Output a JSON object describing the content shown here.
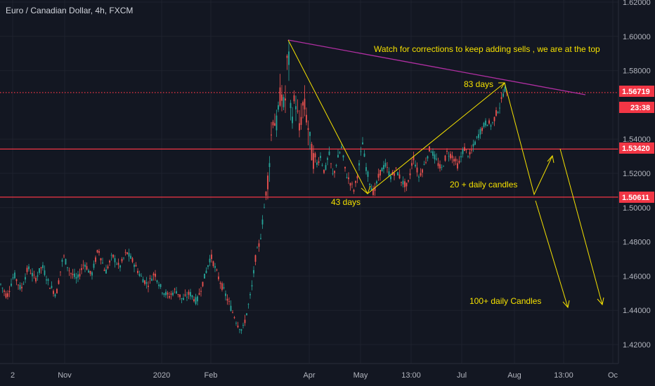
{
  "chart_data": {
    "type": "candlestick",
    "title": "Euro / Canadian Dollar, 4h, FXCM",
    "y_axis": {
      "ticks": [
        "1.62000",
        "1.60000",
        "1.58000",
        "1.54000",
        "1.52000",
        "1.50000",
        "1.48000",
        "1.46000",
        "1.44000",
        "1.42000"
      ],
      "ylim": [
        1.418,
        1.622
      ]
    },
    "x_axis": {
      "ticks": [
        "2",
        "Nov",
        "2020",
        "Feb",
        "Apr",
        "May",
        "13:00",
        "Jul",
        "Aug",
        "13:00",
        "Oc"
      ]
    },
    "price_labels": [
      {
        "value": "1.56719",
        "color": "#f23645"
      },
      {
        "value": "1.53420",
        "color": "#f23645"
      },
      {
        "value": "1.50611",
        "color": "#f23645"
      }
    ],
    "countdown_label": "23:38",
    "horizontal_lines": [
      {
        "price": 1.56719,
        "style": "dotted",
        "color": "#f23645"
      },
      {
        "price": 1.5342,
        "style": "solid",
        "color": "#f23645"
      },
      {
        "price": 1.50611,
        "style": "solid",
        "color": "#f23645"
      }
    ],
    "annotations": [
      {
        "text": "Watch for corrections to keep adding sells , we are at the top"
      },
      {
        "text": "83 days"
      },
      {
        "text": "43 days"
      },
      {
        "text": "20 +  daily candles"
      },
      {
        "text": "100+  daily Candles"
      }
    ],
    "colors": {
      "background": "#131722",
      "up_candle": "#26a69a",
      "down_candle": "#ef5350",
      "trendline": "#b02fa2",
      "drawing": "#f5e100",
      "level": "#f23645"
    },
    "grid": true,
    "price_path": [
      [
        0,
        1.456
      ],
      [
        10,
        1.448
      ],
      [
        20,
        1.461
      ],
      [
        30,
        1.452
      ],
      [
        40,
        1.465
      ],
      [
        50,
        1.458
      ],
      [
        60,
        1.466
      ],
      [
        70,
        1.455
      ],
      [
        80,
        1.449
      ],
      [
        90,
        1.472
      ],
      [
        100,
        1.462
      ],
      [
        110,
        1.458
      ],
      [
        120,
        1.468
      ],
      [
        130,
        1.46
      ],
      [
        140,
        1.476
      ],
      [
        150,
        1.462
      ],
      [
        160,
        1.472
      ],
      [
        170,
        1.465
      ],
      [
        180,
        1.474
      ],
      [
        190,
        1.468
      ],
      [
        200,
        1.46
      ],
      [
        210,
        1.455
      ],
      [
        220,
        1.462
      ],
      [
        230,
        1.452
      ],
      [
        240,
        1.448
      ],
      [
        250,
        1.452
      ],
      [
        260,
        1.446
      ],
      [
        270,
        1.45
      ],
      [
        280,
        1.445
      ],
      [
        290,
        1.458
      ],
      [
        300,
        1.472
      ],
      [
        310,
        1.46
      ],
      [
        320,
        1.45
      ],
      [
        330,
        1.44
      ],
      [
        338,
        1.432
      ],
      [
        345,
        1.428
      ],
      [
        352,
        1.44
      ],
      [
        358,
        1.452
      ],
      [
        364,
        1.472
      ],
      [
        370,
        1.48
      ],
      [
        376,
        1.5
      ],
      [
        382,
        1.52
      ],
      [
        388,
        1.553
      ],
      [
        394,
        1.548
      ],
      [
        400,
        1.57
      ],
      [
        405,
        1.555
      ],
      [
        410,
        1.598
      ],
      [
        414,
        1.55
      ],
      [
        420,
        1.565
      ],
      [
        426,
        1.545
      ],
      [
        432,
        1.562
      ],
      [
        438,
        1.548
      ],
      [
        444,
        1.53
      ],
      [
        450,
        1.525
      ],
      [
        456,
        1.53
      ],
      [
        462,
        1.52
      ],
      [
        468,
        1.532
      ],
      [
        474,
        1.518
      ],
      [
        480,
        1.528
      ],
      [
        486,
        1.535
      ],
      [
        492,
        1.52
      ],
      [
        498,
        1.515
      ],
      [
        504,
        1.51
      ],
      [
        510,
        1.522
      ],
      [
        516,
        1.538
      ],
      [
        520,
        1.525
      ],
      [
        526,
        1.515
      ],
      [
        532,
        1.508
      ],
      [
        540,
        1.52
      ],
      [
        548,
        1.525
      ],
      [
        556,
        1.518
      ],
      [
        564,
        1.522
      ],
      [
        572,
        1.515
      ],
      [
        580,
        1.512
      ],
      [
        588,
        1.53
      ],
      [
        596,
        1.518
      ],
      [
        604,
        1.525
      ],
      [
        612,
        1.535
      ],
      [
        620,
        1.528
      ],
      [
        628,
        1.522
      ],
      [
        636,
        1.532
      ],
      [
        644,
        1.53
      ],
      [
        652,
        1.524
      ],
      [
        660,
        1.535
      ],
      [
        668,
        1.53
      ],
      [
        676,
        1.538
      ],
      [
        684,
        1.545
      ],
      [
        692,
        1.55
      ],
      [
        700,
        1.548
      ],
      [
        706,
        1.555
      ],
      [
        712,
        1.56
      ],
      [
        718,
        1.57
      ],
      [
        722,
        1.565
      ]
    ]
  }
}
